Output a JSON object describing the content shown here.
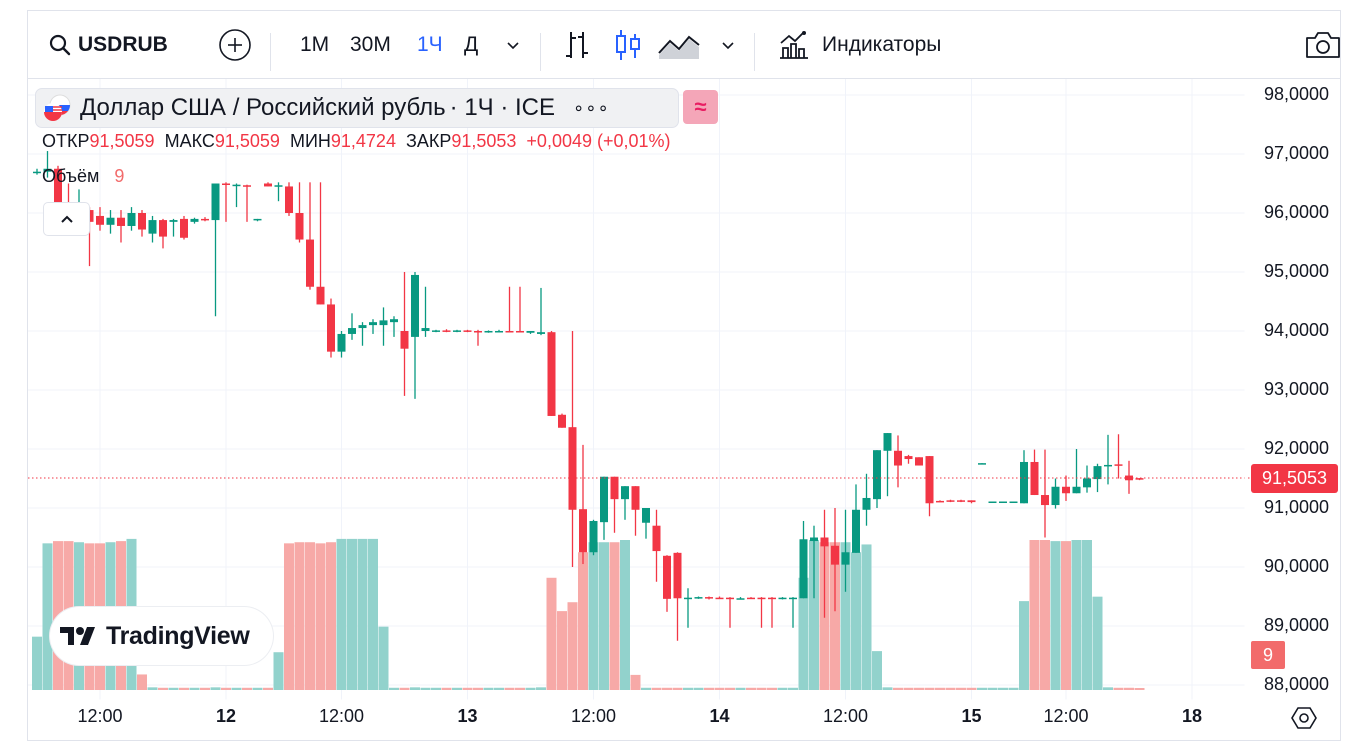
{
  "toolbar": {
    "symbol": "USDRUB",
    "intervals": [
      "1М",
      "30М",
      "1Ч",
      "Д"
    ],
    "active_interval": "1Ч",
    "indicators_label": "Индикаторы"
  },
  "legend": {
    "title": "Доллар США / Российский рубль",
    "interval_exchange": "· 1Ч · ICE",
    "more": "∘∘∘",
    "compare_glyph": "≈",
    "open_label": "ОТКР",
    "open": "91,5059",
    "high_label": "МАКС",
    "high": "91,5059",
    "low_label": "МИН",
    "low": "91,4724",
    "close_label": "ЗАКР",
    "close": "91,5053",
    "change": "+0,0049 (+0,01%)",
    "volume_label": "Объём",
    "volume": "9"
  },
  "watermark": "TradingView",
  "colors": {
    "up": "#089981",
    "down": "#f23645",
    "up_vol": "#92d2cc",
    "down_vol": "#f7a9a7",
    "accent": "#2962ff"
  },
  "chart_data": {
    "type": "candlestick",
    "title": "USDRUB 1Ч ICE",
    "ylim": [
      87.9,
      98.4
    ],
    "y_ticks": [
      "98,0000",
      "97,0000",
      "96,0000",
      "95,0000",
      "94,0000",
      "93,0000",
      "92,0000",
      "91,0000",
      "90,0000",
      "89,0000",
      "88,0000"
    ],
    "y_tick_values": [
      98,
      97,
      96,
      95,
      94,
      93,
      92,
      91,
      90,
      89,
      88
    ],
    "x_ticks": [
      {
        "label": "12:00",
        "day": false,
        "bar": 6
      },
      {
        "label": "12",
        "day": true,
        "bar": 18
      },
      {
        "label": "12:00",
        "day": false,
        "bar": 29
      },
      {
        "label": "13",
        "day": true,
        "bar": 41
      },
      {
        "label": "12:00",
        "day": false,
        "bar": 53
      },
      {
        "label": "14",
        "day": true,
        "bar": 65
      },
      {
        "label": "12:00",
        "day": false,
        "bar": 77
      },
      {
        "label": "15",
        "day": true,
        "bar": 89
      },
      {
        "label": "12:00",
        "day": false,
        "bar": 98
      },
      {
        "label": "18",
        "day": true,
        "bar": 110
      }
    ],
    "last_price": 91.5053,
    "last_price_label": "91,5053",
    "last_volume_label": "9",
    "candles_ohlcv": [
      [
        96.68,
        96.75,
        96.65,
        96.7,
        240
      ],
      [
        96.7,
        97.05,
        96.6,
        96.75,
        660
      ],
      [
        96.75,
        96.8,
        96.05,
        96.1,
        670
      ],
      [
        96.1,
        96.5,
        96.0,
        96.02,
        670
      ],
      [
        96.02,
        96.4,
        95.75,
        96.05,
        665
      ],
      [
        96.05,
        96.1,
        95.1,
        95.85,
        660
      ],
      [
        95.95,
        96.1,
        95.7,
        95.8,
        660
      ],
      [
        95.8,
        96.05,
        95.65,
        95.92,
        665
      ],
      [
        95.92,
        96.05,
        95.5,
        95.78,
        670
      ],
      [
        95.78,
        96.1,
        95.7,
        96.0,
        680
      ],
      [
        96.0,
        96.05,
        95.6,
        95.72,
        70
      ],
      [
        95.65,
        95.95,
        95.5,
        95.88,
        12
      ],
      [
        95.88,
        95.9,
        95.4,
        95.6,
        10
      ],
      [
        95.85,
        95.9,
        95.6,
        95.88,
        10
      ],
      [
        95.9,
        95.95,
        95.55,
        95.58,
        10
      ],
      [
        95.85,
        95.92,
        95.82,
        95.9,
        10
      ],
      [
        95.9,
        95.93,
        95.86,
        95.88,
        10
      ],
      [
        95.88,
        96.5,
        94.25,
        96.5,
        12
      ],
      [
        96.5,
        96.52,
        95.85,
        96.48,
        10
      ],
      [
        96.47,
        96.5,
        96.1,
        96.48,
        10
      ],
      [
        96.47,
        96.48,
        95.85,
        96.45,
        10
      ],
      [
        95.88,
        95.9,
        95.86,
        95.9,
        10
      ],
      [
        96.5,
        96.52,
        96.45,
        96.45,
        10
      ],
      [
        96.45,
        96.52,
        96.2,
        96.47,
        170
      ],
      [
        96.45,
        96.52,
        95.95,
        96.0,
        660
      ],
      [
        96.0,
        96.52,
        95.5,
        95.55,
        665
      ],
      [
        95.55,
        96.52,
        94.7,
        94.75,
        665
      ],
      [
        94.75,
        96.52,
        94.45,
        94.45,
        660
      ],
      [
        94.45,
        94.55,
        93.55,
        93.65,
        665
      ],
      [
        93.65,
        94.0,
        93.55,
        93.95,
        680
      ],
      [
        93.95,
        94.3,
        93.85,
        94.05,
        680
      ],
      [
        94.05,
        94.15,
        93.75,
        94.1,
        680
      ],
      [
        94.1,
        94.2,
        93.95,
        94.15,
        680
      ],
      [
        94.1,
        94.4,
        93.75,
        94.18,
        285
      ],
      [
        94.15,
        94.25,
        93.9,
        94.2,
        10
      ],
      [
        94.0,
        95.0,
        92.9,
        93.7,
        10
      ],
      [
        93.9,
        95.0,
        92.85,
        94.95,
        12
      ],
      [
        94.0,
        94.75,
        93.9,
        94.05,
        10
      ],
      [
        94.0,
        94.02,
        93.98,
        94.01,
        10
      ],
      [
        94.01,
        94.03,
        93.98,
        94.0,
        10
      ],
      [
        94.0,
        94.02,
        93.98,
        94.01,
        10
      ],
      [
        94.01,
        94.02,
        93.98,
        94.0,
        10
      ],
      [
        94.0,
        94.02,
        93.75,
        93.98,
        10
      ],
      [
        93.98,
        94.01,
        93.97,
        94.0,
        10
      ],
      [
        94.0,
        94.02,
        93.98,
        94.0,
        10
      ],
      [
        94.0,
        94.75,
        93.98,
        93.99,
        10
      ],
      [
        94.0,
        94.75,
        93.98,
        93.99,
        10
      ],
      [
        93.97,
        94.0,
        93.95,
        94.0,
        10
      ],
      [
        93.95,
        94.73,
        93.93,
        93.98,
        12
      ],
      [
        93.98,
        94.0,
        92.56,
        92.56,
        505
      ],
      [
        92.58,
        92.6,
        92.36,
        92.36,
        355
      ],
      [
        92.37,
        94.0,
        90.0,
        90.97,
        395
      ],
      [
        90.98,
        92.07,
        90.05,
        90.25,
        620
      ],
      [
        90.25,
        90.8,
        90.2,
        90.78,
        665
      ],
      [
        90.76,
        91.53,
        90.46,
        91.53,
        665
      ],
      [
        91.53,
        91.53,
        90.58,
        91.15,
        665
      ],
      [
        91.15,
        91.37,
        90.8,
        91.37,
        675
      ],
      [
        91.37,
        91.37,
        90.53,
        90.97,
        68
      ],
      [
        90.75,
        91.0,
        90.48,
        91.0,
        10
      ],
      [
        90.7,
        90.97,
        89.75,
        90.27,
        10
      ],
      [
        90.19,
        90.2,
        89.24,
        89.46,
        10
      ],
      [
        90.24,
        90.25,
        88.75,
        89.47,
        10
      ],
      [
        89.46,
        89.64,
        88.97,
        89.48,
        10
      ],
      [
        89.48,
        89.5,
        89.46,
        89.49,
        10
      ],
      [
        89.49,
        89.5,
        89.45,
        89.48,
        10
      ],
      [
        89.48,
        89.5,
        89.46,
        89.47,
        10
      ],
      [
        89.48,
        89.49,
        88.97,
        89.47,
        10
      ],
      [
        89.47,
        89.49,
        89.45,
        89.47,
        10
      ],
      [
        89.48,
        89.49,
        89.46,
        89.47,
        10
      ],
      [
        89.48,
        89.49,
        88.97,
        89.47,
        10
      ],
      [
        89.48,
        89.49,
        88.97,
        89.47,
        10
      ],
      [
        89.47,
        89.49,
        89.45,
        89.48,
        10
      ],
      [
        89.46,
        89.49,
        88.97,
        89.48,
        10
      ],
      [
        89.47,
        90.78,
        89.47,
        90.47,
        505
      ],
      [
        90.44,
        90.7,
        89.47,
        90.5,
        675
      ],
      [
        90.5,
        90.97,
        89.14,
        90.35,
        665
      ],
      [
        90.36,
        91.0,
        89.25,
        90.04,
        665
      ],
      [
        90.04,
        90.97,
        89.58,
        90.25,
        665
      ],
      [
        90.24,
        91.4,
        90.24,
        90.97,
        620
      ],
      [
        90.97,
        91.58,
        90.7,
        91.17,
        655
      ],
      [
        91.15,
        91.98,
        91.0,
        91.98,
        175
      ],
      [
        91.97,
        92.27,
        91.2,
        92.27,
        12
      ],
      [
        91.97,
        92.23,
        91.35,
        91.72,
        10
      ],
      [
        91.88,
        91.9,
        91.75,
        91.83,
        10
      ],
      [
        91.86,
        91.86,
        91.72,
        91.72,
        10
      ],
      [
        91.88,
        91.88,
        90.86,
        91.08,
        10
      ],
      [
        91.12,
        91.13,
        91.1,
        91.11,
        10
      ],
      [
        91.13,
        91.14,
        91.1,
        91.12,
        10
      ],
      [
        91.13,
        91.14,
        91.1,
        91.12,
        10
      ],
      [
        91.13,
        91.13,
        91.08,
        91.1,
        10
      ],
      [
        91.75,
        91.76,
        91.74,
        91.76,
        10
      ],
      [
        91.1,
        91.11,
        91.09,
        91.11,
        10
      ],
      [
        91.1,
        91.11,
        91.09,
        91.11,
        10
      ],
      [
        91.1,
        91.11,
        91.09,
        91.11,
        10
      ],
      [
        91.08,
        91.98,
        91.08,
        91.78,
        400
      ],
      [
        91.78,
        91.99,
        91.22,
        91.22,
        675
      ],
      [
        91.22,
        91.99,
        90.5,
        91.05,
        675
      ],
      [
        91.05,
        91.5,
        90.99,
        91.36,
        670
      ],
      [
        91.36,
        91.55,
        91.12,
        91.25,
        670
      ],
      [
        91.25,
        92.0,
        91.25,
        91.36,
        675
      ],
      [
        91.35,
        91.72,
        91.26,
        91.5,
        675
      ],
      [
        91.49,
        91.75,
        91.27,
        91.71,
        420
      ],
      [
        91.71,
        92.24,
        91.4,
        91.73,
        12
      ],
      [
        91.74,
        92.25,
        91.5,
        91.73,
        10
      ],
      [
        91.55,
        91.8,
        91.24,
        91.47,
        10
      ],
      [
        91.5059,
        91.5059,
        91.4724,
        91.5053,
        9
      ]
    ]
  }
}
